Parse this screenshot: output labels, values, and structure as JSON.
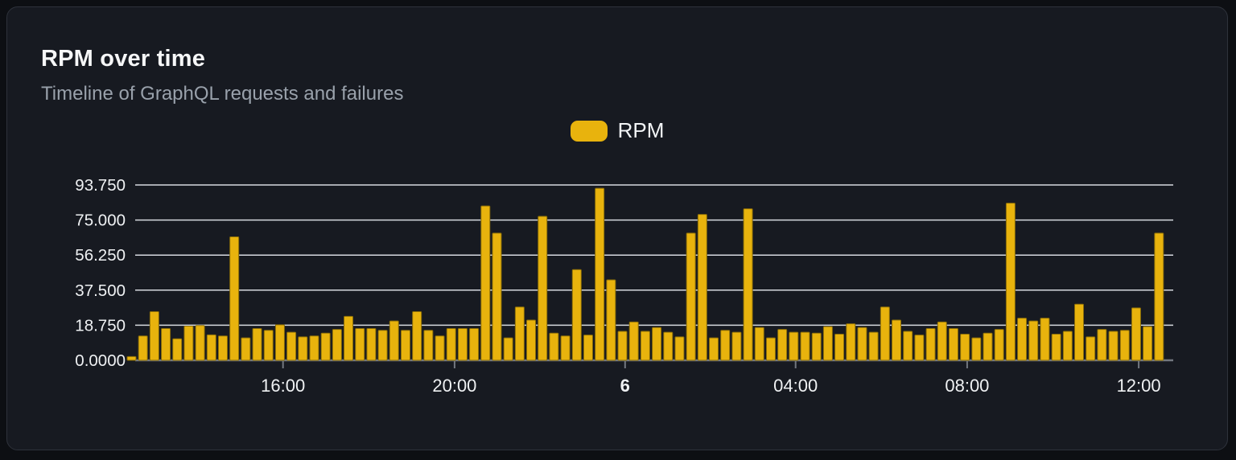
{
  "card": {
    "title": "RPM over time",
    "subtitle": "Timeline of GraphQL requests and failures"
  },
  "legend": {
    "label": "RPM",
    "swatch_color": "#e8b30d"
  },
  "colors": {
    "page_background": "#0d0f13",
    "card_background": "#171a21",
    "card_border": "#2e323b",
    "bar_fill": "#e8b30d",
    "bar_stroke": "#8a6d08",
    "gridline": "#d7dae0",
    "axis_line": "#72777f",
    "axis_text": "#eff1f3",
    "title_text": "#f6f7f8",
    "subtitle_text": "#99a1ab"
  },
  "chart_data": {
    "type": "bar",
    "title": "RPM over time",
    "subtitle": "Timeline of GraphQL requests and failures",
    "series_name": "RPM",
    "xlabel": "",
    "ylabel": "",
    "ylim": [
      0,
      93.75
    ],
    "grid": "horizontal",
    "legend_position": "top-center",
    "y_ticks": [
      "0.0000",
      "18.750",
      "37.500",
      "56.250",
      "75.000",
      "93.750"
    ],
    "y_tick_values": [
      0,
      18.75,
      37.5,
      56.25,
      75,
      93.75
    ],
    "x_ticks": [
      {
        "label": "16:00",
        "pos": 0.149,
        "emphasis": false
      },
      {
        "label": "20:00",
        "pos": 0.313,
        "emphasis": false
      },
      {
        "label": "6",
        "pos": 0.476,
        "emphasis": true
      },
      {
        "label": "04:00",
        "pos": 0.639,
        "emphasis": false
      },
      {
        "label": "08:00",
        "pos": 0.803,
        "emphasis": false
      },
      {
        "label": "12:00",
        "pos": 0.967,
        "emphasis": false
      }
    ],
    "values": [
      2,
      13,
      26,
      17,
      11.5,
      18.3,
      18.6,
      13.6,
      13,
      66,
      12,
      17,
      16,
      19,
      15,
      12.5,
      13,
      14.5,
      16.5,
      23.5,
      17,
      17,
      16,
      21,
      16,
      26,
      16,
      13,
      17,
      17,
      17,
      82.5,
      68,
      12,
      28.5,
      21.5,
      77,
      14.5,
      13,
      48.5,
      13.5,
      92,
      43,
      15.5,
      20.5,
      15.5,
      17.5,
      15,
      12.5,
      68,
      78,
      12,
      16,
      15,
      81,
      17.5,
      12,
      16.5,
      15,
      15,
      14.5,
      18,
      14,
      19.5,
      17.5,
      15,
      28.5,
      21.5,
      15.5,
      13.5,
      17,
      20.5,
      17,
      14,
      12,
      14.5,
      16.5,
      84,
      22.5,
      21,
      22.5,
      14,
      15.5,
      30,
      12.5,
      16.5,
      15.5,
      16,
      28,
      18,
      68
    ]
  }
}
